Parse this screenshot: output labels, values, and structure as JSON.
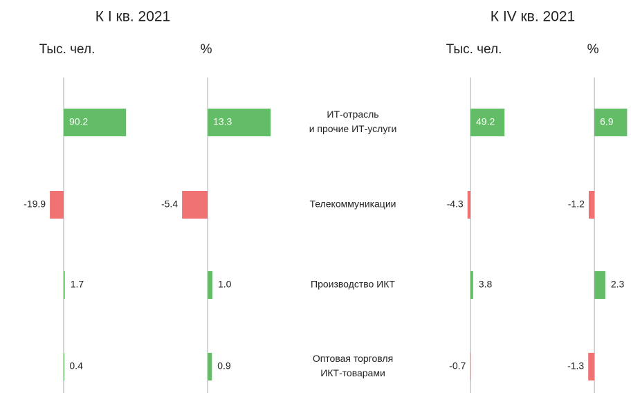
{
  "groups": [
    {
      "title": "К I кв. 2021"
    },
    {
      "title": "К IV кв. 2021"
    }
  ],
  "categories": [
    [
      "ИТ-отрасль",
      "и прочие ИТ-услуги"
    ],
    [
      "Телекоммуникации"
    ],
    [
      "Производство ИКТ"
    ],
    [
      "Оптовая торговля",
      "ИКТ-товарами"
    ]
  ],
  "positive_color": "#62bd66",
  "negative_color": "#f07272",
  "chart_data": [
    {
      "type": "bar",
      "title": "Тыс. чел.",
      "values": [
        90.2,
        -19.9,
        1.7,
        0.4
      ],
      "value_labels": [
        "90.2",
        "-19.9",
        "1.7",
        "0.4"
      ],
      "xlim": [
        -30,
        100
      ]
    },
    {
      "type": "bar",
      "title": "%",
      "values": [
        13.3,
        -5.4,
        1.0,
        0.9
      ],
      "value_labels": [
        "13.3",
        "-5.4",
        "1.0",
        "0.9"
      ],
      "xlim": [
        -6,
        14
      ]
    },
    {
      "type": "bar",
      "title": "Тыс. чел.",
      "values": [
        49.2,
        -4.3,
        3.8,
        -0.7
      ],
      "value_labels": [
        "49.2",
        "-4.3",
        "3.8",
        "-0.7"
      ],
      "xlim": [
        -30,
        100
      ]
    },
    {
      "type": "bar",
      "title": "%",
      "values": [
        6.9,
        -1.2,
        2.3,
        -1.3
      ],
      "value_labels": [
        "6.9",
        "-1.2",
        "2.3",
        "-1.3"
      ],
      "xlim": [
        -6,
        14
      ]
    }
  ]
}
